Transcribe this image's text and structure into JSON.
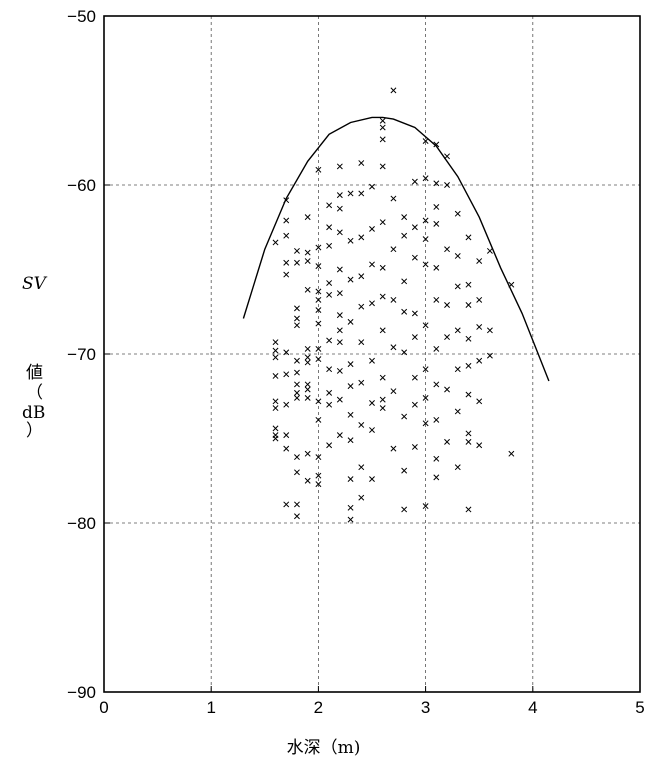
{
  "chart_data": {
    "type": "scatter",
    "title": "",
    "xlabel": "水深（m)",
    "ylabel_parts": [
      "SV",
      "値",
      "（",
      "dB",
      "）"
    ],
    "xlim": [
      0,
      5
    ],
    "ylim": [
      -90,
      -50
    ],
    "xticks": [
      0,
      1,
      2,
      3,
      4,
      5
    ],
    "yticks": [
      -90,
      -80,
      -70,
      -60,
      -50
    ],
    "xtick_labels": [
      "0",
      "1",
      "2",
      "3",
      "4",
      "5"
    ],
    "ytick_labels": [
      "−90",
      "−80",
      "−70",
      "−60",
      "−50"
    ],
    "grid": true,
    "marker": "x",
    "series": [
      {
        "kind": "points",
        "points": [
          [
            1.6,
            -63.4
          ],
          [
            1.6,
            -69.3
          ],
          [
            1.6,
            -69.8
          ],
          [
            1.6,
            -70.2
          ],
          [
            1.6,
            -71.3
          ],
          [
            1.6,
            -72.8
          ],
          [
            1.6,
            -73.2
          ],
          [
            1.6,
            -74.4
          ],
          [
            1.6,
            -74.8
          ],
          [
            1.6,
            -75.0
          ],
          [
            1.7,
            -60.9
          ],
          [
            1.7,
            -62.1
          ],
          [
            1.7,
            -63.0
          ],
          [
            1.7,
            -64.6
          ],
          [
            1.7,
            -65.3
          ],
          [
            1.7,
            -69.9
          ],
          [
            1.7,
            -71.2
          ],
          [
            1.7,
            -73.0
          ],
          [
            1.7,
            -74.8
          ],
          [
            1.7,
            -75.6
          ],
          [
            1.7,
            -78.9
          ],
          [
            1.8,
            -63.9
          ],
          [
            1.8,
            -64.6
          ],
          [
            1.8,
            -67.3
          ],
          [
            1.8,
            -67.9
          ],
          [
            1.8,
            -68.3
          ],
          [
            1.8,
            -70.4
          ],
          [
            1.8,
            -71.1
          ],
          [
            1.8,
            -71.8
          ],
          [
            1.8,
            -72.3
          ],
          [
            1.8,
            -72.6
          ],
          [
            1.8,
            -76.1
          ],
          [
            1.8,
            -77.0
          ],
          [
            1.8,
            -78.9
          ],
          [
            1.8,
            -79.6
          ],
          [
            1.9,
            -61.9
          ],
          [
            1.9,
            -64.0
          ],
          [
            1.9,
            -64.5
          ],
          [
            1.9,
            -66.2
          ],
          [
            1.9,
            -69.7
          ],
          [
            1.9,
            -70.2
          ],
          [
            1.9,
            -70.5
          ],
          [
            1.9,
            -71.8
          ],
          [
            1.9,
            -72.1
          ],
          [
            1.9,
            -72.6
          ],
          [
            1.9,
            -75.9
          ],
          [
            1.9,
            -77.5
          ],
          [
            2.0,
            -59.1
          ],
          [
            2.0,
            -63.7
          ],
          [
            2.0,
            -64.8
          ],
          [
            2.0,
            -66.3
          ],
          [
            2.0,
            -66.8
          ],
          [
            2.0,
            -67.4
          ],
          [
            2.0,
            -68.2
          ],
          [
            2.0,
            -69.7
          ],
          [
            2.0,
            -70.3
          ],
          [
            2.0,
            -72.8
          ],
          [
            2.0,
            -73.9
          ],
          [
            2.0,
            -76.1
          ],
          [
            2.0,
            -77.2
          ],
          [
            2.0,
            -77.7
          ],
          [
            2.1,
            -61.2
          ],
          [
            2.1,
            -62.5
          ],
          [
            2.1,
            -63.6
          ],
          [
            2.1,
            -65.8
          ],
          [
            2.1,
            -66.5
          ],
          [
            2.1,
            -69.2
          ],
          [
            2.1,
            -70.9
          ],
          [
            2.1,
            -72.3
          ],
          [
            2.1,
            -73.0
          ],
          [
            2.1,
            -75.4
          ],
          [
            2.2,
            -58.9
          ],
          [
            2.2,
            -60.6
          ],
          [
            2.2,
            -61.4
          ],
          [
            2.2,
            -62.8
          ],
          [
            2.2,
            -65.0
          ],
          [
            2.2,
            -66.4
          ],
          [
            2.2,
            -67.7
          ],
          [
            2.2,
            -68.6
          ],
          [
            2.2,
            -69.3
          ],
          [
            2.2,
            -71.0
          ],
          [
            2.2,
            -72.7
          ],
          [
            2.2,
            -74.8
          ],
          [
            2.3,
            -60.5
          ],
          [
            2.3,
            -63.3
          ],
          [
            2.3,
            -65.6
          ],
          [
            2.3,
            -68.1
          ],
          [
            2.3,
            -70.6
          ],
          [
            2.3,
            -71.9
          ],
          [
            2.3,
            -73.6
          ],
          [
            2.3,
            -75.1
          ],
          [
            2.3,
            -77.4
          ],
          [
            2.3,
            -79.1
          ],
          [
            2.3,
            -79.8
          ],
          [
            2.4,
            -58.7
          ],
          [
            2.4,
            -60.5
          ],
          [
            2.4,
            -63.1
          ],
          [
            2.4,
            -65.4
          ],
          [
            2.4,
            -67.2
          ],
          [
            2.4,
            -69.3
          ],
          [
            2.4,
            -71.7
          ],
          [
            2.4,
            -74.2
          ],
          [
            2.4,
            -76.7
          ],
          [
            2.4,
            -78.5
          ],
          [
            2.5,
            -60.1
          ],
          [
            2.5,
            -62.6
          ],
          [
            2.5,
            -64.7
          ],
          [
            2.5,
            -67.0
          ],
          [
            2.5,
            -70.4
          ],
          [
            2.5,
            -72.9
          ],
          [
            2.5,
            -74.5
          ],
          [
            2.5,
            -77.4
          ],
          [
            2.6,
            -56.2
          ],
          [
            2.6,
            -56.6
          ],
          [
            2.6,
            -57.3
          ],
          [
            2.6,
            -58.9
          ],
          [
            2.6,
            -62.2
          ],
          [
            2.6,
            -64.9
          ],
          [
            2.6,
            -66.6
          ],
          [
            2.6,
            -68.6
          ],
          [
            2.6,
            -71.4
          ],
          [
            2.6,
            -72.7
          ],
          [
            2.6,
            -73.2
          ],
          [
            2.7,
            -54.4
          ],
          [
            2.7,
            -60.8
          ],
          [
            2.7,
            -63.8
          ],
          [
            2.7,
            -66.8
          ],
          [
            2.7,
            -69.6
          ],
          [
            2.7,
            -72.2
          ],
          [
            2.7,
            -75.6
          ],
          [
            2.8,
            -61.9
          ],
          [
            2.8,
            -63.0
          ],
          [
            2.8,
            -65.7
          ],
          [
            2.8,
            -67.5
          ],
          [
            2.8,
            -69.9
          ],
          [
            2.8,
            -73.7
          ],
          [
            2.8,
            -76.9
          ],
          [
            2.8,
            -79.2
          ],
          [
            2.9,
            -59.8
          ],
          [
            2.9,
            -62.5
          ],
          [
            2.9,
            -64.3
          ],
          [
            2.9,
            -67.6
          ],
          [
            2.9,
            -69.0
          ],
          [
            2.9,
            -71.4
          ],
          [
            2.9,
            -73.0
          ],
          [
            2.9,
            -75.5
          ],
          [
            3.0,
            -57.4
          ],
          [
            3.0,
            -59.6
          ],
          [
            3.0,
            -62.1
          ],
          [
            3.0,
            -63.2
          ],
          [
            3.0,
            -64.7
          ],
          [
            3.0,
            -68.3
          ],
          [
            3.0,
            -70.9
          ],
          [
            3.0,
            -72.6
          ],
          [
            3.0,
            -74.1
          ],
          [
            3.0,
            -79.0
          ],
          [
            3.1,
            -57.6
          ],
          [
            3.1,
            -59.9
          ],
          [
            3.1,
            -61.3
          ],
          [
            3.1,
            -62.3
          ],
          [
            3.1,
            -64.9
          ],
          [
            3.1,
            -66.8
          ],
          [
            3.1,
            -69.7
          ],
          [
            3.1,
            -71.8
          ],
          [
            3.1,
            -73.9
          ],
          [
            3.1,
            -76.2
          ],
          [
            3.1,
            -77.3
          ],
          [
            3.2,
            -58.3
          ],
          [
            3.2,
            -60.0
          ],
          [
            3.2,
            -63.8
          ],
          [
            3.2,
            -67.1
          ],
          [
            3.2,
            -69.0
          ],
          [
            3.2,
            -72.1
          ],
          [
            3.2,
            -75.2
          ],
          [
            3.3,
            -61.7
          ],
          [
            3.3,
            -64.2
          ],
          [
            3.3,
            -66.0
          ],
          [
            3.3,
            -68.6
          ],
          [
            3.3,
            -70.9
          ],
          [
            3.3,
            -73.4
          ],
          [
            3.3,
            -76.7
          ],
          [
            3.4,
            -63.1
          ],
          [
            3.4,
            -65.9
          ],
          [
            3.4,
            -67.1
          ],
          [
            3.4,
            -69.1
          ],
          [
            3.4,
            -70.7
          ],
          [
            3.4,
            -72.4
          ],
          [
            3.4,
            -74.7
          ],
          [
            3.4,
            -75.2
          ],
          [
            3.4,
            -79.2
          ],
          [
            3.5,
            -64.5
          ],
          [
            3.5,
            -66.8
          ],
          [
            3.5,
            -68.4
          ],
          [
            3.5,
            -70.4
          ],
          [
            3.5,
            -72.8
          ],
          [
            3.5,
            -75.4
          ],
          [
            3.6,
            -63.9
          ],
          [
            3.6,
            -68.6
          ],
          [
            3.6,
            -70.1
          ],
          [
            3.8,
            -65.9
          ],
          [
            3.8,
            -75.9
          ]
        ]
      },
      {
        "kind": "curve",
        "points": [
          [
            1.3,
            -67.9
          ],
          [
            1.5,
            -63.8
          ],
          [
            1.7,
            -60.8
          ],
          [
            1.9,
            -58.6
          ],
          [
            2.1,
            -57.0
          ],
          [
            2.3,
            -56.3
          ],
          [
            2.5,
            -56.0
          ],
          [
            2.6,
            -56.0
          ],
          [
            2.7,
            -56.1
          ],
          [
            2.9,
            -56.6
          ],
          [
            3.1,
            -57.7
          ],
          [
            3.3,
            -59.5
          ],
          [
            3.5,
            -61.9
          ],
          [
            3.7,
            -64.9
          ],
          [
            3.9,
            -67.6
          ],
          [
            4.15,
            -71.6
          ]
        ]
      }
    ]
  }
}
